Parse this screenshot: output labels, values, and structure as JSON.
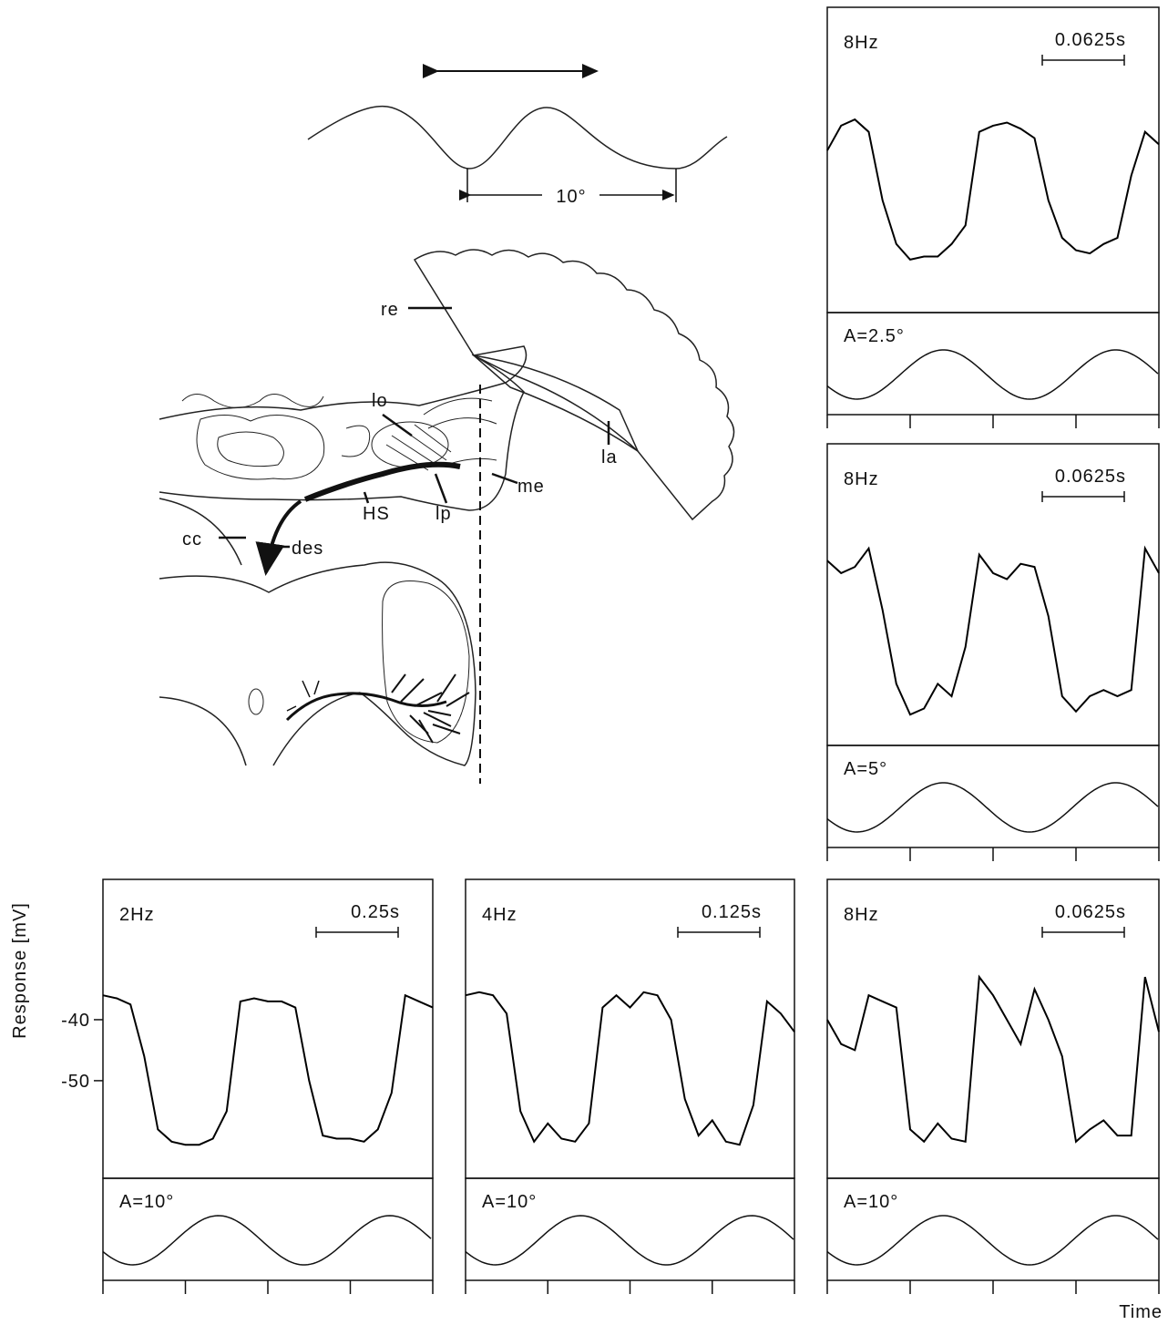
{
  "chart_data": [
    {
      "type": "line",
      "title": "8Hz",
      "scale_bar": "0.0625s",
      "stimulus": "A=2.5°",
      "color": "#000000",
      "ylim": [
        -66,
        -17
      ],
      "values": [
        -40,
        -36,
        -35,
        -37,
        -48,
        -55,
        -57.5,
        -57,
        -57,
        -55,
        -52,
        -37,
        -36,
        -35.5,
        -36.5,
        -38,
        -48,
        -54,
        -56,
        -56.5,
        -55,
        -54,
        -44,
        -37,
        -39
      ]
    },
    {
      "type": "line",
      "title": "8Hz",
      "scale_bar": "0.0625s",
      "stimulus": "A=5°",
      "color": "#000000",
      "ylim": [
        -66,
        -17
      ],
      "values": [
        -36,
        -38,
        -37,
        -34,
        -44,
        -56,
        -61,
        -60,
        -56,
        -58,
        -50,
        -35,
        -38,
        -39,
        -36.5,
        -37,
        -45,
        -58,
        -60.5,
        -58,
        -57,
        -58,
        -57,
        -34,
        -38
      ]
    },
    {
      "type": "line",
      "title": "2Hz",
      "scale_bar": "0.25s",
      "stimulus": "A=10°",
      "color": "#000000",
      "ylim": [
        -66,
        -17
      ],
      "ylabel": "Response [mV]",
      "yticks": [
        -40,
        -50
      ],
      "values": [
        -36,
        -36.5,
        -37.5,
        -46,
        -58,
        -60,
        -60.5,
        -60.5,
        -59.5,
        -55,
        -37,
        -36.5,
        -37,
        -37,
        -38,
        -50,
        -59,
        -59.5,
        -59.5,
        -60,
        -58,
        -52,
        -36,
        -37,
        -38
      ]
    },
    {
      "type": "line",
      "title": "4Hz",
      "scale_bar": "0.125s",
      "stimulus": "A=10°",
      "color": "#000000",
      "ylim": [
        -66,
        -17
      ],
      "values": [
        -36,
        -35.5,
        -36,
        -39,
        -55,
        -60,
        -57,
        -59.5,
        -60,
        -57,
        -38,
        -36,
        -38,
        -35.5,
        -36,
        -40,
        -53,
        -59,
        -56.5,
        -60,
        -60.5,
        -54,
        -37,
        -39,
        -42
      ]
    },
    {
      "type": "line",
      "title": "8Hz",
      "scale_bar": "0.0625s",
      "stimulus": "A=10°",
      "color": "#000000",
      "ylim": [
        -66,
        -17
      ],
      "xlabel": "Time",
      "values": [
        -40,
        -44,
        -45,
        -36,
        -37,
        -38,
        -58,
        -60,
        -57,
        -59.5,
        -60,
        -33,
        -36,
        -40,
        -44,
        -35,
        -40,
        -46,
        -60,
        -58,
        -56.5,
        -59,
        -59,
        -33,
        -42
      ]
    }
  ],
  "diagram": {
    "stimulus_angle": "10°",
    "labels": [
      "re",
      "lo",
      "me",
      "la",
      "HS",
      "lp",
      "cc",
      "des"
    ]
  }
}
